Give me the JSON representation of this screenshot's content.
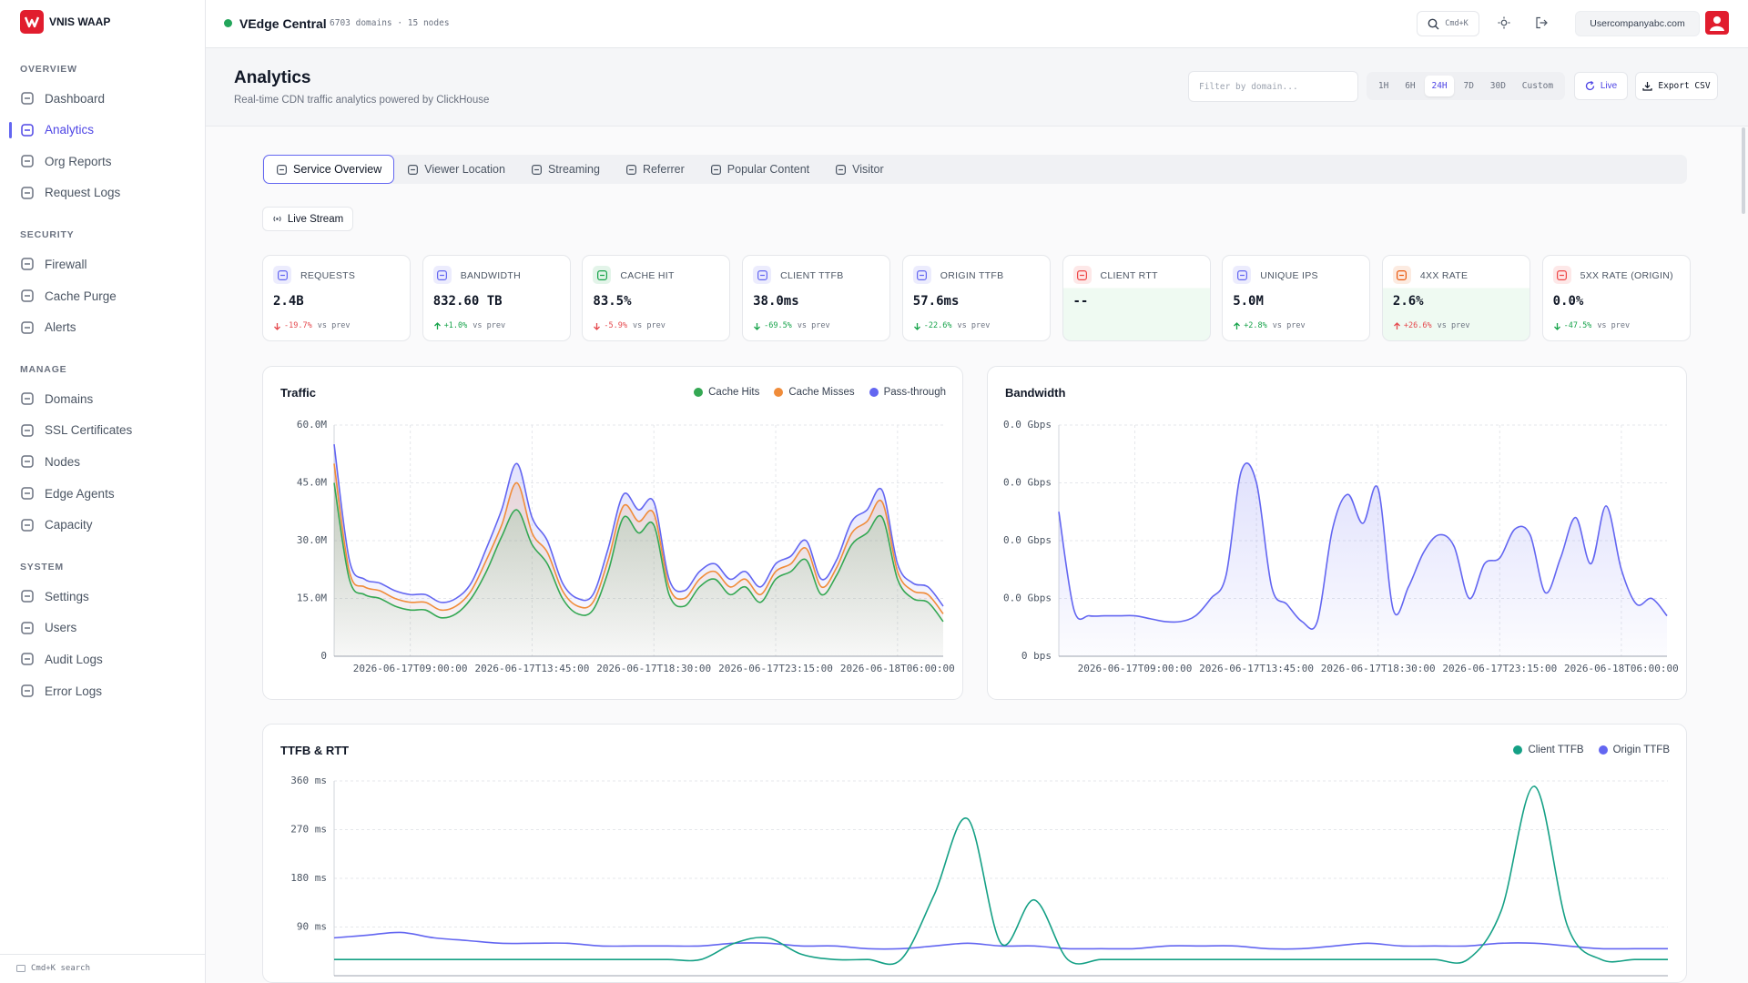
{
  "sidebar": {
    "brand": "VNIS WAAP",
    "active": "Analytics",
    "sections": [
      {
        "title": "OVERVIEW",
        "items": [
          "Dashboard",
          "Analytics",
          "Org Reports",
          "Request Logs"
        ]
      },
      {
        "title": "SECURITY",
        "items": [
          "Firewall",
          "Cache Purge",
          "Alerts"
        ]
      },
      {
        "title": "MANAGE",
        "items": [
          "Domains",
          "SSL Certificates",
          "Nodes",
          "Edge Agents",
          "Capacity"
        ]
      },
      {
        "title": "SYSTEM",
        "items": [
          "Settings",
          "Users",
          "Audit Logs",
          "Error Logs"
        ]
      }
    ],
    "footer": "Cmd+K search"
  },
  "topbar": {
    "cluster": "VEdge Central",
    "meta": "6703 domains · 15 nodes",
    "search_hint": "Cmd+K",
    "user": "Usercompanyabc.com"
  },
  "page": {
    "title": "Analytics",
    "subtitle": "Real-time CDN traffic analytics powered by ClickHouse",
    "filter_placeholder": "Filter by domain...",
    "ranges": [
      "1H",
      "6H",
      "24H",
      "7D",
      "30D",
      "Custom"
    ],
    "active_range": "24H",
    "live": "Live",
    "export": "Export CSV"
  },
  "tabs": {
    "items": [
      "Service Overview",
      "Viewer Location",
      "Streaming",
      "Referrer",
      "Popular Content",
      "Visitor"
    ],
    "active": "Service Overview"
  },
  "live_stream": "Live Stream",
  "kpis": [
    {
      "label": "REQUESTS",
      "value": "2.4B",
      "delta": "-19.7%",
      "delta_color": "#e5484d",
      "note": "vs prev",
      "icon_color": "#6366f1"
    },
    {
      "label": "BANDWIDTH",
      "value": "832.60 TB",
      "delta": "+1.0%",
      "delta_color": "#16a34a",
      "note": "vs prev",
      "icon_color": "#6366f1"
    },
    {
      "label": "CACHE HIT",
      "value": "83.5%",
      "delta": "-5.9%",
      "delta_color": "#e5484d",
      "note": "vs prev",
      "icon_color": "#16a34a"
    },
    {
      "label": "CLIENT TTFB",
      "value": "38.0ms",
      "delta": "-69.5%",
      "delta_color": "#16a34a",
      "note": "vs prev",
      "icon_color": "#6366f1"
    },
    {
      "label": "ORIGIN TTFB",
      "value": "57.6ms",
      "delta": "-22.6%",
      "delta_color": "#16a34a",
      "note": "vs prev",
      "icon_color": "#6366f1"
    },
    {
      "label": "CLIENT RTT",
      "value": "--",
      "icon_color": "#ef4444"
    },
    {
      "label": "UNIQUE IPS",
      "value": "5.0M",
      "delta": "+2.8%",
      "delta_color": "#16a34a",
      "note": "vs prev",
      "icon_color": "#6366f1"
    },
    {
      "label": "4XX RATE",
      "value": "2.6%",
      "delta": "+26.6%",
      "delta_color": "#e5484d",
      "note": "vs prev",
      "icon_color": "#ea580c"
    },
    {
      "label": "5XX RATE (ORIGIN)",
      "value": "0.0%",
      "delta": "-47.5%",
      "delta_color": "#16a34a",
      "note": "vs prev",
      "icon_color": "#ef4444"
    }
  ],
  "chart_data": [
    {
      "type": "line",
      "title": "Traffic",
      "legend": "top-right",
      "area": true,
      "grid": true,
      "categories": [
        null,
        null,
        null,
        null,
        null,
        "2026-06-17T09:00:00",
        null,
        null,
        null,
        null,
        null,
        null,
        null,
        "2026-06-17T13:45:00",
        null,
        null,
        null,
        null,
        null,
        null,
        null,
        "2026-06-17T18:30:00",
        null,
        null,
        null,
        null,
        null,
        null,
        null,
        "2026-06-17T23:15:00",
        null,
        null,
        null,
        null,
        null,
        null,
        null,
        "2026-06-18T06:00:00",
        null,
        null,
        null
      ],
      "series": [
        {
          "name": "Cache Hits",
          "color": "#34a853",
          "values": [
            45,
            20,
            16,
            15,
            13,
            12,
            12,
            10,
            11,
            15,
            22,
            31,
            38,
            29,
            24,
            15,
            11,
            12,
            22,
            36,
            32,
            34,
            16,
            13,
            18,
            20,
            16,
            18,
            14,
            20,
            22,
            25,
            16,
            21,
            29,
            32,
            36,
            20,
            15,
            14,
            9
          ]
        },
        {
          "name": "Cache Misses",
          "color": "#f08c3a",
          "values": [
            50,
            22,
            18,
            17,
            15,
            14,
            14,
            12,
            13,
            17,
            25,
            34,
            45,
            32,
            27,
            17,
            13,
            14,
            25,
            39,
            35,
            37,
            18,
            15,
            20,
            22,
            18,
            20,
            16,
            22,
            24,
            28,
            18,
            23,
            32,
            35,
            40,
            22,
            17,
            16,
            11
          ]
        },
        {
          "name": "Pass-through",
          "color": "#6366f1",
          "values": [
            55,
            25,
            20,
            19,
            17,
            16,
            16,
            14,
            15,
            19,
            28,
            38,
            50,
            36,
            30,
            19,
            15,
            16,
            28,
            42,
            38,
            40,
            20,
            17,
            22,
            24,
            20,
            22,
            18,
            24,
            26,
            30,
            20,
            25,
            35,
            38,
            43,
            24,
            19,
            18,
            13
          ]
        }
      ],
      "ylim": [
        0,
        60
      ],
      "yticks": [
        0,
        {
          "value": 15,
          "label": "15.0M"
        },
        {
          "value": 30,
          "label": "30.0M"
        },
        {
          "value": 45,
          "label": "45.0M"
        },
        {
          "value": 60,
          "label": "60.0M"
        }
      ]
    },
    {
      "type": "line",
      "title": "Bandwidth",
      "area": true,
      "grid": true,
      "color": "#6366f1",
      "categories": [
        null,
        null,
        null,
        null,
        null,
        "2026-06-17T09:00:00",
        null,
        null,
        null,
        null,
        null,
        null,
        null,
        "2026-06-17T13:45:00",
        null,
        null,
        null,
        null,
        null,
        null,
        null,
        "2026-06-17T18:30:00",
        null,
        null,
        null,
        null,
        null,
        null,
        null,
        "2026-06-17T23:15:00",
        null,
        null,
        null,
        null,
        null,
        null,
        null,
        "2026-06-18T06:00:00",
        null,
        null,
        null
      ],
      "values": [
        25000000,
        8000000,
        7000000,
        7000000,
        7000000,
        7000000,
        6500000,
        6000000,
        6000000,
        7000000,
        10000000,
        14000000,
        32000000,
        30000000,
        12000000,
        9000000,
        6000000,
        6000000,
        22000000,
        28000000,
        23000000,
        29000000,
        8000000,
        12000000,
        18000000,
        21000000,
        19000000,
        10000000,
        16000000,
        17000000,
        22000000,
        21000000,
        11000000,
        17000000,
        24000000,
        16000000,
        26000000,
        15000000,
        9000000,
        10000000,
        7000000
      ],
      "ylim": [
        0,
        40000000
      ],
      "yticks": [
        {
          "value": 0,
          "label": "0 bps"
        },
        {
          "value": 10000000,
          "label": "0.0 Gbps"
        },
        {
          "value": 20000000,
          "label": "0.0 Gbps"
        },
        {
          "value": 30000000,
          "label": "0.0 Gbps"
        },
        {
          "value": 40000000,
          "label": "0.0 Gbps"
        }
      ]
    },
    {
      "type": "line",
      "title": "TTFB & RTT",
      "legend": "top-right",
      "area": false,
      "grid": true,
      "series": [
        {
          "name": "Client TTFB",
          "color": "#14a085",
          "values": [
            30,
            30,
            30,
            30,
            30,
            30,
            30,
            30,
            30,
            30,
            30,
            30,
            60,
            70,
            40,
            30,
            30,
            30,
            150,
            290,
            60,
            140,
            30,
            30,
            30,
            30,
            30,
            30,
            30,
            30,
            30,
            30,
            30,
            30,
            30,
            120,
            350,
            90,
            30,
            30,
            30
          ]
        },
        {
          "name": "Origin TTFB",
          "color": "#6366f1",
          "values": [
            70,
            75,
            80,
            70,
            65,
            60,
            60,
            60,
            55,
            55,
            55,
            55,
            60,
            60,
            55,
            55,
            50,
            50,
            55,
            60,
            55,
            55,
            50,
            50,
            50,
            55,
            55,
            55,
            50,
            50,
            55,
            60,
            55,
            55,
            55,
            60,
            60,
            55,
            50,
            50,
            50
          ]
        }
      ],
      "ylim": [
        0,
        360
      ],
      "yticks": [
        {
          "value": 90,
          "label": "90 ms"
        },
        {
          "value": 180,
          "label": "180 ms"
        },
        {
          "value": 270,
          "label": "270 ms"
        },
        {
          "value": 360,
          "label": "360 ms"
        }
      ]
    }
  ]
}
